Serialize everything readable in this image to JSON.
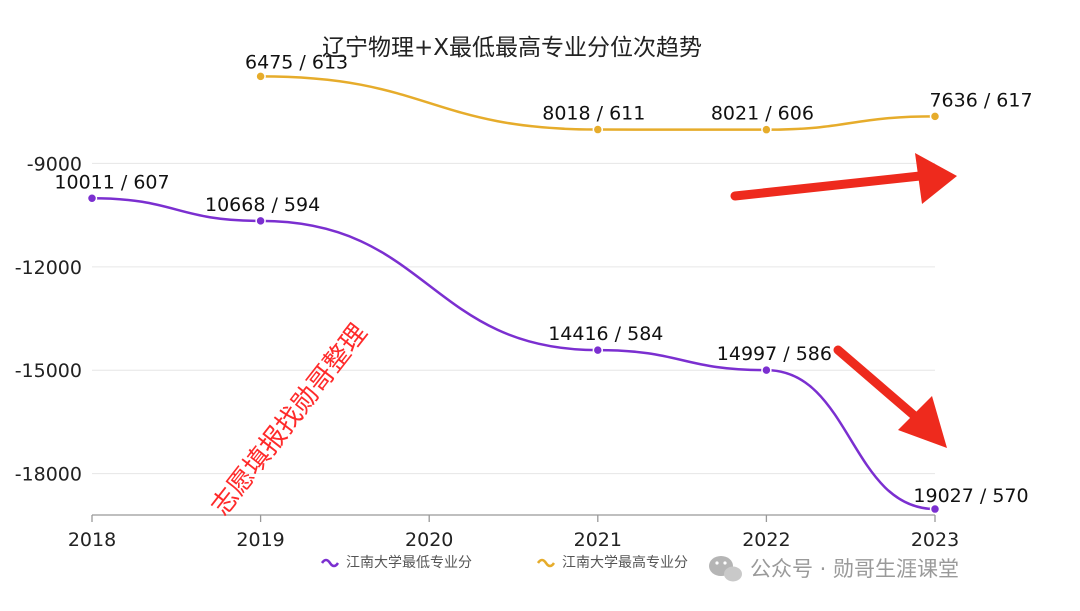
{
  "chart_data": {
    "type": "line",
    "title": "辽宁物理+X最低最高专业分位次趋势",
    "categories": [
      "2018",
      "2019",
      "2020",
      "2021",
      "2022",
      "2023"
    ],
    "y_ticks": [
      "-9000",
      "-12000",
      "-15000",
      "-18000"
    ],
    "ylim": [
      -19200,
      -6000
    ],
    "grid": true,
    "legend_position": "bottom",
    "series": [
      {
        "name": "江南大学最低专业分",
        "color": "#7b2fd0",
        "x": [
          "2018",
          "2019",
          "2021",
          "2022",
          "2023"
        ],
        "values": [
          -10011,
          -10668,
          -14416,
          -14997,
          -19027
        ],
        "labels": [
          "10011 / 607",
          "10668 / 594",
          "14416 / 584",
          "14997 / 586",
          "19027 / 570"
        ]
      },
      {
        "name": "江南大学最高专业分",
        "color": "#e6ac2b",
        "x": [
          "2019",
          "2021",
          "2022",
          "2023"
        ],
        "values": [
          -6475,
          -8018,
          -8021,
          -7636
        ],
        "labels": [
          "6475 / 613",
          "8018 / 611",
          "8021 / 606",
          "7636 / 617"
        ]
      }
    ]
  },
  "watermark": {
    "diagonal_text": "志愿填报找勋哥整理",
    "account_text": "公众号 · 勋哥生涯课堂",
    "text_color": "#ff2a2a",
    "arrow_color": "#ee2a1d"
  }
}
